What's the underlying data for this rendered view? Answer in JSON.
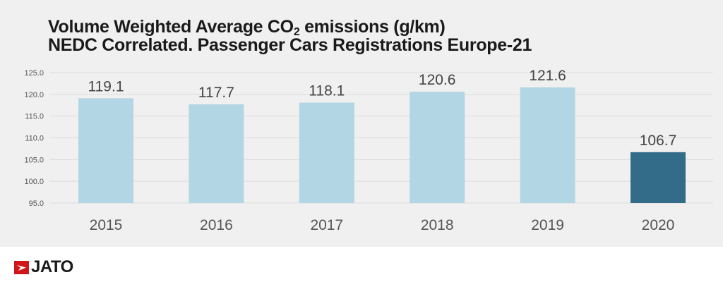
{
  "chart_data": {
    "type": "bar",
    "title_line1_pre": "Volume Weighted Average CO",
    "title_sub": "2",
    "title_line1_post": " emissions (g/km)",
    "title_line2": "NEDC Correlated. Passenger Cars Registrations Europe-21",
    "categories": [
      "2015",
      "2016",
      "2017",
      "2018",
      "2019",
      "2020"
    ],
    "values": [
      119.1,
      117.7,
      118.1,
      120.6,
      121.6,
      106.7
    ],
    "data_labels": [
      "119.1",
      "117.7",
      "118.1",
      "120.6",
      "121.6",
      "106.7"
    ],
    "ylim": [
      95,
      125
    ],
    "yticks": [
      "95.0",
      "100.0",
      "105.0",
      "110.0",
      "115.0",
      "120.0",
      "125.0"
    ],
    "grid": true,
    "colors": {
      "default": "#b3d6e4",
      "highlight": "#336c88"
    },
    "highlight_index": 5
  },
  "logo": {
    "text": "JATO"
  }
}
